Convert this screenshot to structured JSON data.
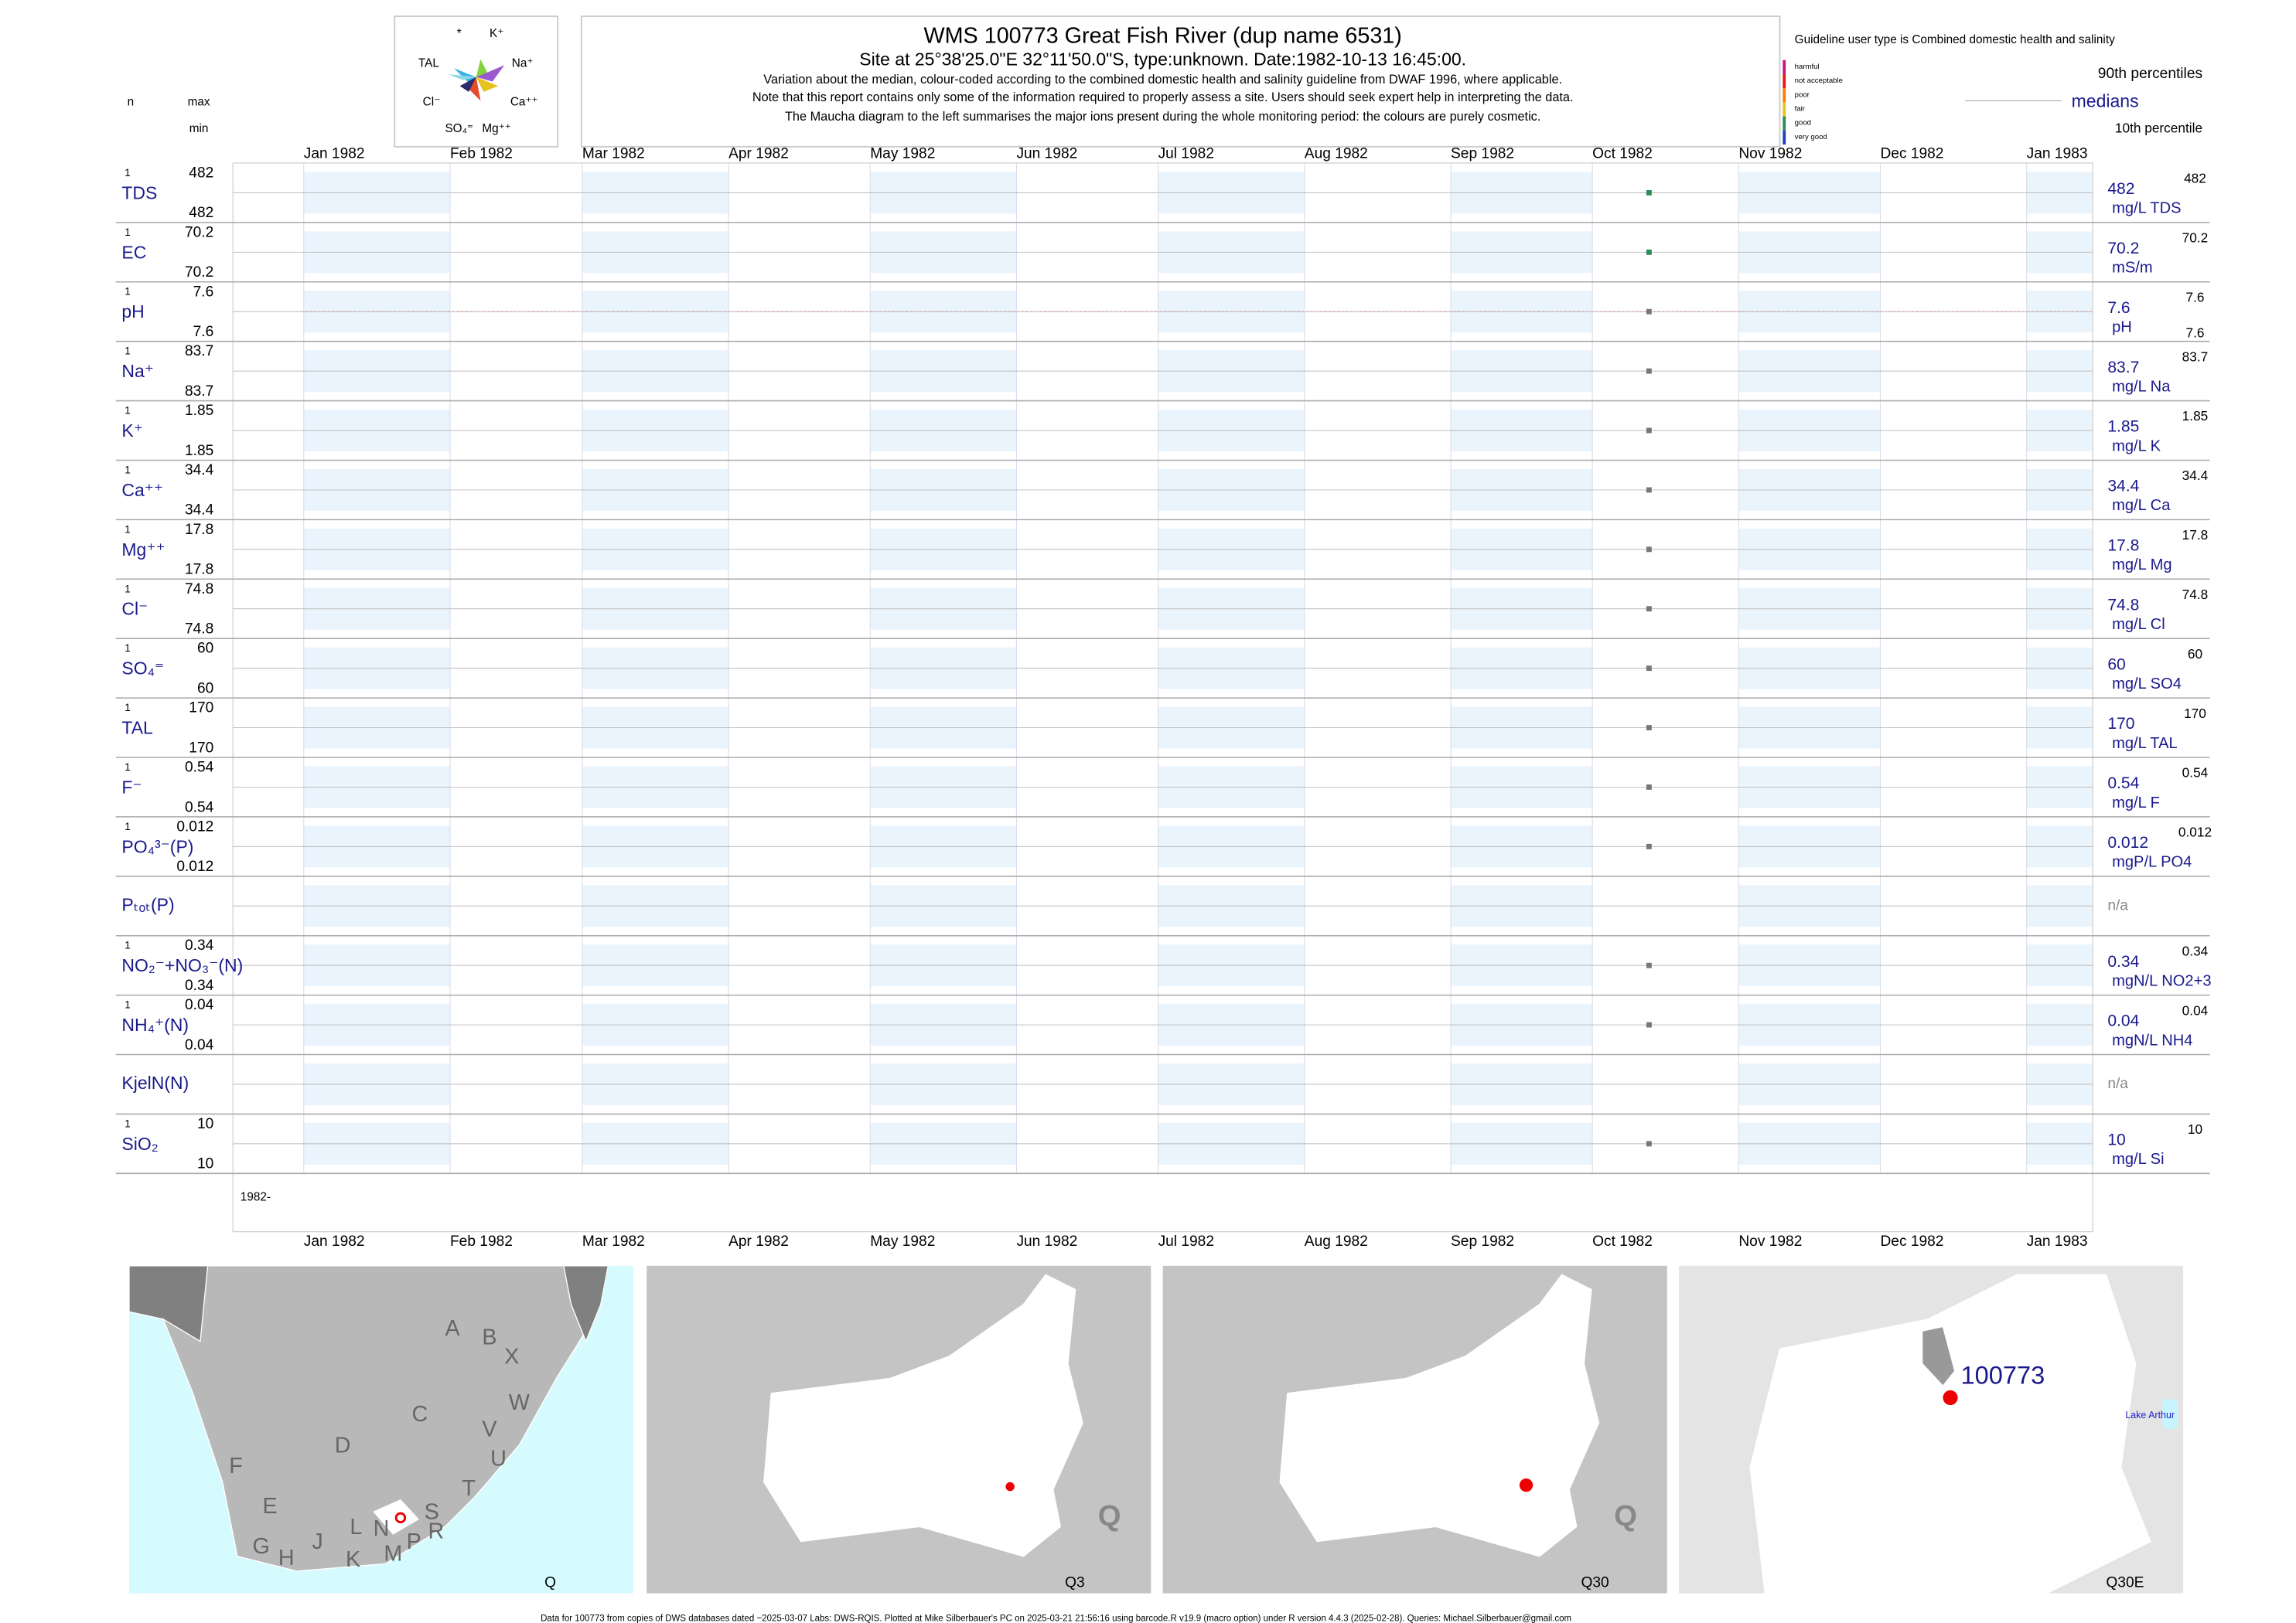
{
  "header": {
    "title": "WMS 100773  Great Fish River (dup name 6531)",
    "subtitle": "Site at 25°38'25.0\"E 32°11'50.0\"S, type:unknown. Date:1982-10-13 16:45:00.",
    "notes": [
      "Variation about the median,  colour-coded according to the combined domestic health and salinity guideline from DWAF 1996, where applicable.",
      "Note that this report contains only some of the information required to properly assess a site. Users should seek expert help in interpreting the data.",
      "The Maucha diagram to the left summarises the major ions present during the whole monitoring period: the colours are purely cosmetic."
    ],
    "col_n": "n",
    "col_max": "max",
    "col_min": "min"
  },
  "maucha": {
    "labels": [
      "*",
      "K⁺",
      "TAL",
      "Na⁺",
      "Cl⁻",
      "Ca⁺⁺",
      "SO₄⁼",
      "Mg⁺⁺"
    ]
  },
  "legend": {
    "guideline": "Guideline user type is Combined domestic health and salinity",
    "classes": [
      {
        "name": "harmful",
        "color": "#c71585"
      },
      {
        "name": "not acceptable",
        "color": "#e41a1c"
      },
      {
        "name": "poor",
        "color": "#ff7f00"
      },
      {
        "name": "fair",
        "color": "#e6c619"
      },
      {
        "name": "good",
        "color": "#2e8b57"
      },
      {
        "name": "very good",
        "color": "#1f3fbf"
      }
    ],
    "p90": "90th percentiles",
    "median": "medians",
    "p10": "10th percentile"
  },
  "chart_data": {
    "type": "strip",
    "xlim": [
      "1981-12-17",
      "1983-01-15"
    ],
    "xticks": [
      {
        "value": "1982-01-01",
        "label": "Jan 1982"
      },
      {
        "value": "1982-02-01",
        "label": "Feb 1982"
      },
      {
        "value": "1982-03-01",
        "label": "Mar 1982"
      },
      {
        "value": "1982-04-01",
        "label": "Apr 1982"
      },
      {
        "value": "1982-05-01",
        "label": "May 1982"
      },
      {
        "value": "1982-06-01",
        "label": "Jun 1982"
      },
      {
        "value": "1982-07-01",
        "label": "Jul 1982"
      },
      {
        "value": "1982-08-01",
        "label": "Aug 1982"
      },
      {
        "value": "1982-09-01",
        "label": "Sep 1982"
      },
      {
        "value": "1982-10-01",
        "label": "Oct 1982"
      },
      {
        "value": "1982-11-01",
        "label": "Nov 1982"
      },
      {
        "value": "1982-12-01",
        "label": "Dec 1982"
      },
      {
        "value": "1983-01-01",
        "label": "Jan 1983"
      }
    ],
    "x": [
      "1982-10-13"
    ],
    "year_label": "1982-",
    "na": "n/a",
    "rows": [
      {
        "label": "TDS",
        "n": 1,
        "max": 482,
        "min": 482,
        "median": 482,
        "p90": 482,
        "unit": "mg/L TDS",
        "values": [
          482
        ],
        "color": "#2e8b57"
      },
      {
        "label": "EC",
        "n": 1,
        "max": 70.2,
        "min": 70.2,
        "median": 70.2,
        "p90": 70.2,
        "unit": "mS/m",
        "values": [
          70.2
        ],
        "color": "#2e8b57"
      },
      {
        "label": "pH",
        "n": 1,
        "max": 7.6,
        "min": 7.6,
        "median": 7.6,
        "p90": 7.6,
        "p10": 7.6,
        "unit": "pH",
        "values": [
          7.6
        ],
        "color": "#777777"
      },
      {
        "label": "Na⁺",
        "n": 1,
        "max": 83.7,
        "min": 83.7,
        "median": 83.7,
        "p90": 83.7,
        "unit": "mg/L Na",
        "values": [
          83.7
        ],
        "color": "#777777"
      },
      {
        "label": "K⁺",
        "n": 1,
        "max": 1.85,
        "min": 1.85,
        "median": 1.85,
        "p90": 1.85,
        "unit": "mg/L K",
        "values": [
          1.85
        ],
        "color": "#777777"
      },
      {
        "label": "Ca⁺⁺",
        "n": 1,
        "max": 34.4,
        "min": 34.4,
        "median": 34.4,
        "p90": 34.4,
        "unit": "mg/L Ca",
        "values": [
          34.4
        ],
        "color": "#777777"
      },
      {
        "label": "Mg⁺⁺",
        "n": 1,
        "max": 17.8,
        "min": 17.8,
        "median": 17.8,
        "p90": 17.8,
        "unit": "mg/L Mg",
        "values": [
          17.8
        ],
        "color": "#777777"
      },
      {
        "label": "Cl⁻",
        "n": 1,
        "max": 74.8,
        "min": 74.8,
        "median": 74.8,
        "p90": 74.8,
        "unit": "mg/L Cl",
        "values": [
          74.8
        ],
        "color": "#777777"
      },
      {
        "label": "SO₄⁼",
        "n": 1,
        "max": 60,
        "min": 60,
        "median": 60,
        "p90": 60,
        "unit": "mg/L SO4",
        "values": [
          60
        ],
        "color": "#777777"
      },
      {
        "label": "TAL",
        "n": 1,
        "max": 170,
        "min": 170,
        "median": 170,
        "p90": 170,
        "unit": "mg/L TAL",
        "values": [
          170
        ],
        "color": "#777777"
      },
      {
        "label": "F⁻",
        "n": 1,
        "max": 0.54,
        "min": 0.54,
        "median": 0.54,
        "p90": 0.54,
        "unit": "mg/L F",
        "values": [
          0.54
        ],
        "color": "#777777"
      },
      {
        "label": "PO₄³⁻(P)",
        "n": 1,
        "max": 0.012,
        "min": 0.012,
        "median": 0.012,
        "p90": 0.012,
        "unit": "mgP/L PO4",
        "values": [
          0.012
        ],
        "color": "#777777"
      },
      {
        "label": "Pₜₒₜ(P)"
      },
      {
        "label": "NO₂⁻+NO₃⁻(N)",
        "n": 1,
        "max": 0.34,
        "min": 0.34,
        "median": 0.34,
        "p90": 0.34,
        "unit": "mgN/L NO2+3",
        "values": [
          0.34
        ],
        "color": "#777777"
      },
      {
        "label": "NH₄⁺(N)",
        "n": 1,
        "max": 0.04,
        "min": 0.04,
        "median": 0.04,
        "p90": 0.04,
        "unit": "mgN/L NH4",
        "values": [
          0.04
        ],
        "color": "#777777"
      },
      {
        "label": "KjelN(N)"
      },
      {
        "label": "SiO₂",
        "n": 1,
        "max": 10,
        "min": 10,
        "median": 10,
        "p90": 10,
        "unit": "mg/L Si",
        "values": [
          10
        ],
        "color": "#777777"
      }
    ]
  },
  "maps": {
    "region_letters": [
      "A",
      "B",
      "X",
      "W",
      "C",
      "V",
      "U",
      "D",
      "T",
      "F",
      "E",
      "S",
      "G",
      "H",
      "J",
      "L",
      "N",
      "P",
      "R",
      "K",
      "M"
    ],
    "big_q": "Q",
    "captions": [
      "Q",
      "Q3",
      "Q30",
      "Q30E"
    ],
    "site": "100773",
    "lake": "Lake Arthur"
  },
  "footer": "Data for 100773 from copies of DWS databases dated ~2025-03-07 Labs: DWS-RQIS. Plotted at Mike Silberbauer's PC on 2025-03-21 21:56:16 using barcode.R v19.9 (macro option) under R version 4.4.3 (2025-02-28). Queries: Michael.Silberbauer@gmail.com"
}
